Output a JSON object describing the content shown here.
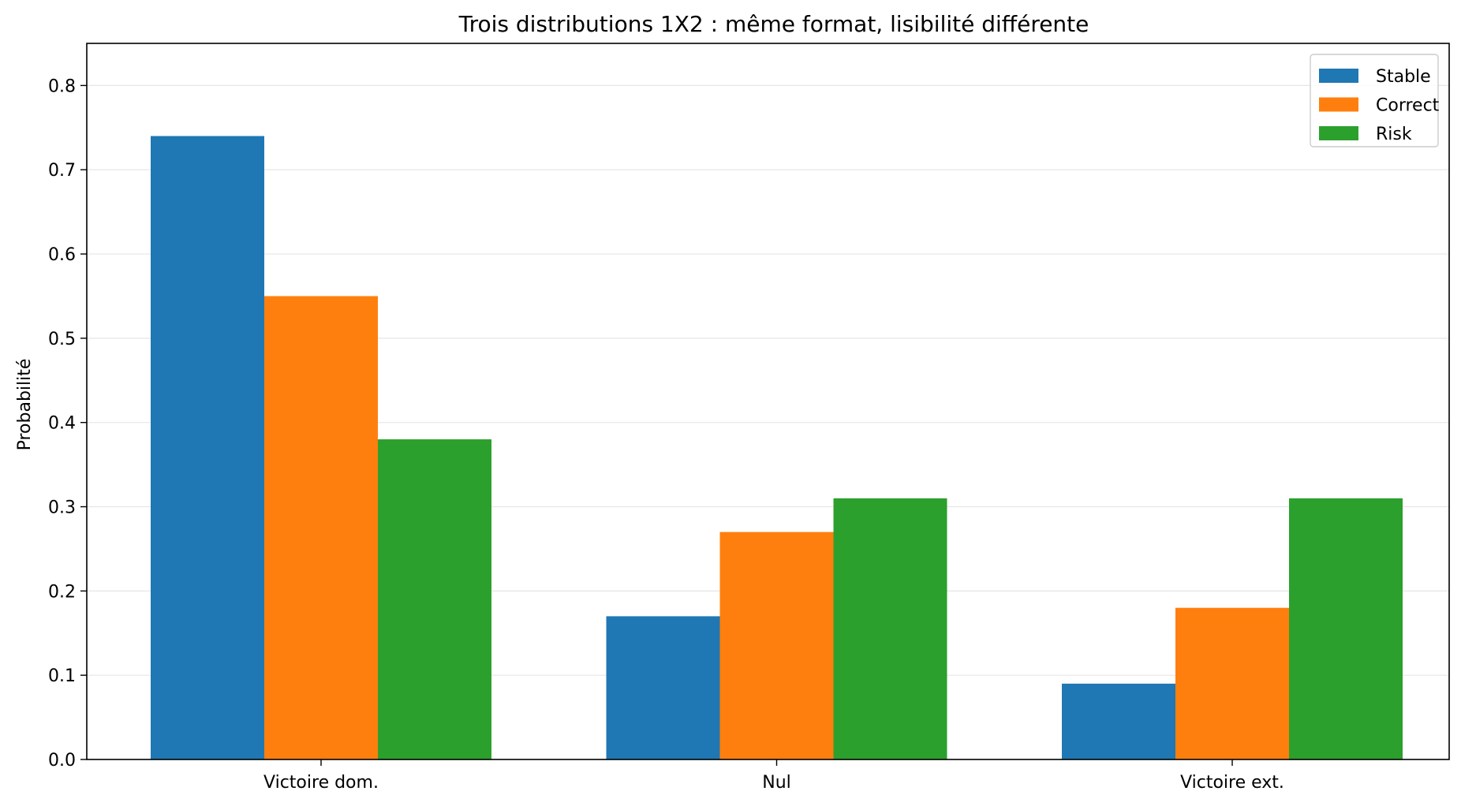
{
  "chart_data": {
    "type": "bar",
    "title": "Trois distributions 1X2 : même format, lisibilité différente",
    "xlabel": "",
    "ylabel": "Probabilité",
    "categories": [
      "Victoire dom.",
      "Nul",
      "Victoire ext."
    ],
    "series": [
      {
        "name": "Stable",
        "color": "#1f77b4",
        "values": [
          0.74,
          0.17,
          0.09
        ]
      },
      {
        "name": "Correct",
        "color": "#ff7f0e",
        "values": [
          0.55,
          0.27,
          0.18
        ]
      },
      {
        "name": "Risk",
        "color": "#2ca02c",
        "values": [
          0.38,
          0.31,
          0.31
        ]
      }
    ],
    "ylim": [
      0,
      0.85
    ],
    "yticks": [
      "0.0",
      "0.1",
      "0.2",
      "0.3",
      "0.4",
      "0.5",
      "0.6",
      "0.7",
      "0.8"
    ],
    "grid": "y",
    "legend_position": "top-right"
  }
}
